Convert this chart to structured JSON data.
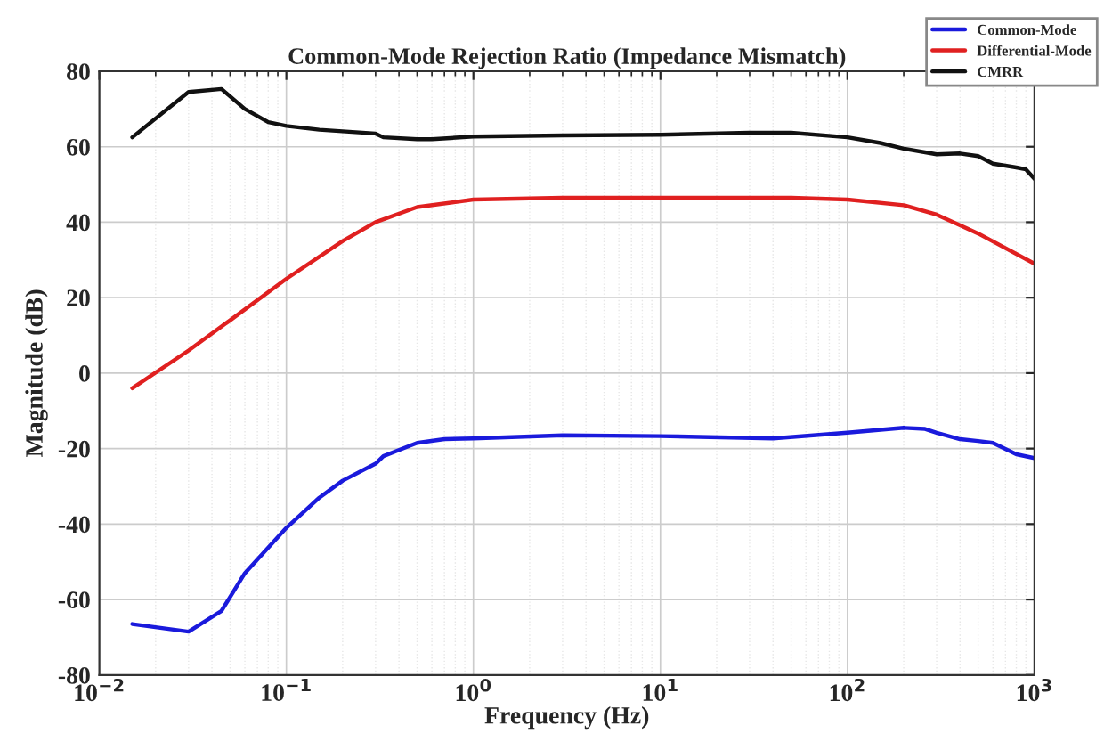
{
  "chart_data": {
    "type": "line",
    "title": "Common-Mode Rejection Ratio (Impedance Mismatch)",
    "xlabel": "Frequency (Hz)",
    "ylabel": "Magnitude (dB)",
    "log": "x",
    "xlim": [
      0.01,
      1000
    ],
    "ylim": [
      -80,
      80
    ],
    "xticks": [
      {
        "value": 0.01,
        "label": "10$^{−2}$"
      },
      {
        "value": 0.1,
        "label": "10$^{−1}$"
      },
      {
        "value": 1,
        "label": "10$^{0}$"
      },
      {
        "value": 10,
        "label": "10$^{1}$"
      },
      {
        "value": 100,
        "label": "10$^{2}$"
      },
      {
        "value": 1000,
        "label": "10$^{3}$"
      }
    ],
    "yticks": [
      -80,
      -60,
      -40,
      -20,
      0,
      20,
      40,
      60,
      80
    ],
    "grid": true,
    "legend": "top right",
    "line_style": "solid",
    "marker": "none",
    "series": [
      {
        "name": "Common-Mode",
        "color": "#1a1adc",
        "x": [
          0.015,
          0.03,
          0.045,
          0.06,
          0.1,
          0.15,
          0.2,
          0.3,
          0.33,
          0.5,
          0.7,
          1,
          3,
          10,
          40,
          100,
          200,
          260,
          300,
          400,
          500,
          600,
          800,
          1000
        ],
        "values": [
          -66.5,
          -68.5,
          -63,
          -53,
          -41,
          -33,
          -28.5,
          -24,
          -22,
          -18.5,
          -17.5,
          -17.3,
          -16.5,
          -16.7,
          -17.3,
          -15.8,
          -14.5,
          -14.8,
          -15.8,
          -17.5,
          -18,
          -18.5,
          -21.5,
          -22.5
        ]
      },
      {
        "name": "Differential-Mode",
        "color": "#e02020",
        "x": [
          0.015,
          0.03,
          0.05,
          0.1,
          0.2,
          0.3,
          0.5,
          1,
          3,
          10,
          50,
          100,
          200,
          300,
          500,
          1000
        ],
        "values": [
          -4,
          6,
          14,
          25,
          35,
          40,
          44,
          46,
          46.5,
          46.5,
          46.5,
          46,
          44.5,
          42,
          37,
          29
        ]
      },
      {
        "name": "CMRR",
        "color": "#111111",
        "x": [
          0.015,
          0.03,
          0.045,
          0.06,
          0.08,
          0.1,
          0.15,
          0.3,
          0.33,
          0.5,
          0.6,
          1,
          3,
          10,
          30,
          50,
          100,
          150,
          200,
          300,
          400,
          500,
          600,
          800,
          900,
          1000
        ],
        "values": [
          62.5,
          74.5,
          75.3,
          70,
          66.5,
          65.5,
          64.5,
          63.5,
          62.5,
          62,
          62,
          62.7,
          63,
          63.2,
          63.7,
          63.7,
          62.5,
          61,
          59.5,
          58,
          58.2,
          57.5,
          55.5,
          54.5,
          54,
          51.5
        ]
      }
    ]
  }
}
